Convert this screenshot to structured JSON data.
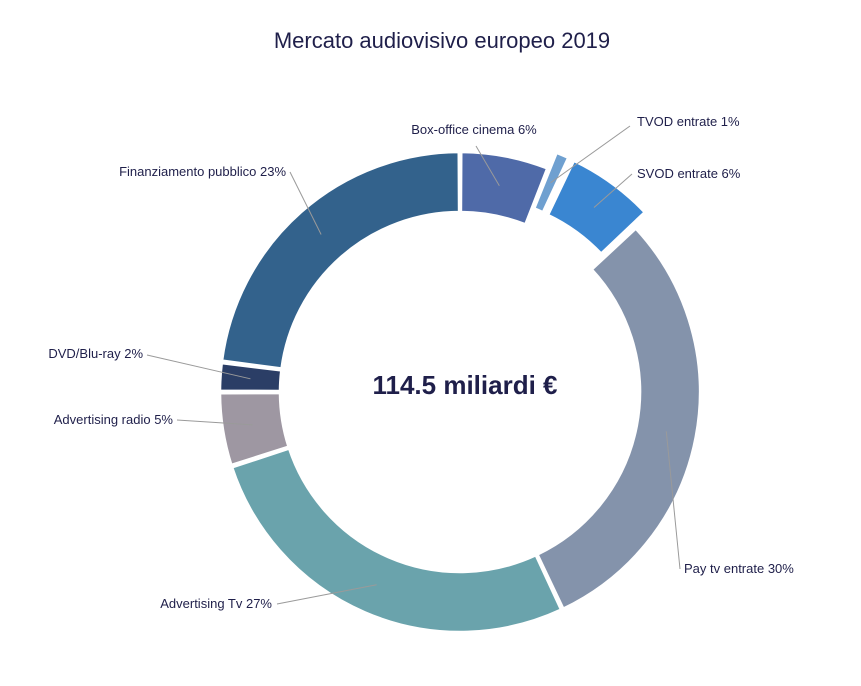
{
  "chart_data": {
    "type": "pie",
    "variant": "donut",
    "title": "Mercato audiovisivo europeo 2019",
    "center_text": "114.5 miliardi €",
    "slices": [
      {
        "label": "Box-office cinema 6%",
        "value": 6,
        "color": "#4f6aa8",
        "exploded": false
      },
      {
        "label": "TVOD entrate 1%",
        "value": 1,
        "color": "#6fa0d0",
        "exploded": true
      },
      {
        "label": "SVOD entrate 6%",
        "value": 6,
        "color": "#3a86d1",
        "exploded": true
      },
      {
        "label": "Pay tv entrate 30%",
        "value": 30,
        "color": "#8493ab",
        "exploded": false
      },
      {
        "label": "Advertising Tv 27%",
        "value": 27,
        "color": "#6aa3ac",
        "exploded": false
      },
      {
        "label": "Advertising radio 5%",
        "value": 5,
        "color": "#9e97a2",
        "exploded": false
      },
      {
        "label": "DVD/Blu-ray 2%",
        "value": 2,
        "color": "#2b3e66",
        "exploded": false
      },
      {
        "label": "Finanziamento pubblico 23%",
        "value": 23,
        "color": "#33628c",
        "exploded": false
      }
    ],
    "legend": "none"
  }
}
